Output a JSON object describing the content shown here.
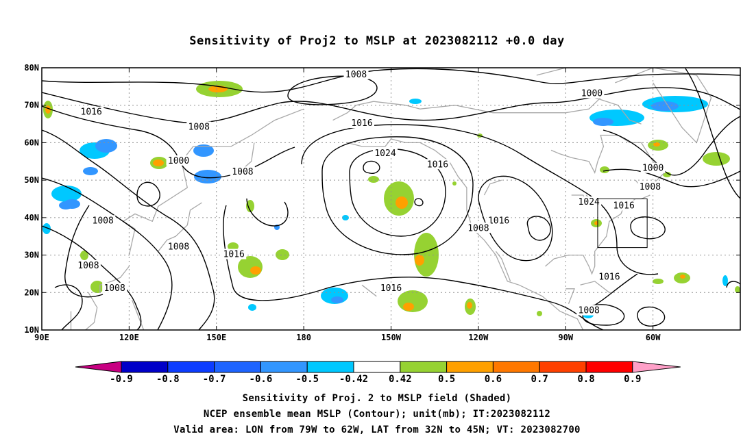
{
  "title": "Sensitivity of Proj2 to MSLP at 2023082112 +0.0 day",
  "map": {
    "lat_labels": [
      "80N",
      "70N",
      "60N",
      "50N",
      "40N",
      "30N",
      "20N",
      "10N"
    ],
    "lon_labels": [
      "90E",
      "120E",
      "150E",
      "180",
      "150W",
      "120W",
      "90W",
      "60W"
    ],
    "contour_labels": [
      {
        "value": "1008",
        "lon": -162,
        "lat": 78
      },
      {
        "value": "1000",
        "lon": -81,
        "lat": 73
      },
      {
        "value": "1016",
        "lon": 107,
        "lat": 68
      },
      {
        "value": "1008",
        "lon": 144,
        "lat": 64
      },
      {
        "value": "1016",
        "lon": -160,
        "lat": 65
      },
      {
        "value": "1000",
        "lon": 137,
        "lat": 55
      },
      {
        "value": "1024",
        "lon": -152,
        "lat": 57
      },
      {
        "value": "1016",
        "lon": -134,
        "lat": 54
      },
      {
        "value": "1000",
        "lon": -60,
        "lat": 53
      },
      {
        "value": "1008",
        "lon": 159,
        "lat": 52
      },
      {
        "value": "1008",
        "lon": -61,
        "lat": 48
      },
      {
        "value": "1024",
        "lon": -82,
        "lat": 44
      },
      {
        "value": "1016",
        "lon": -70,
        "lat": 43
      },
      {
        "value": "1008",
        "lon": 111,
        "lat": 39
      },
      {
        "value": "1016",
        "lon": -113,
        "lat": 39
      },
      {
        "value": "1008",
        "lon": -120,
        "lat": 37
      },
      {
        "value": "1008",
        "lon": 137,
        "lat": 32
      },
      {
        "value": "1016",
        "lon": 156,
        "lat": 30
      },
      {
        "value": "1008",
        "lon": 106,
        "lat": 27
      },
      {
        "value": "1016",
        "lon": -75,
        "lat": 24
      },
      {
        "value": "1008",
        "lon": 115,
        "lat": 21
      },
      {
        "value": "1016",
        "lon": -150,
        "lat": 21
      },
      {
        "value": "1008",
        "lon": -82,
        "lat": 15
      }
    ],
    "valid_box": {
      "lon_min": -79,
      "lon_max": -62,
      "lat_min": 32,
      "lat_max": 45
    },
    "colors": {
      "contour": "#000000",
      "coastline": "#a8a8a8",
      "grid": "#909090"
    }
  },
  "colorbar": {
    "labels": [
      "-0.9",
      "-0.8",
      "-0.7",
      "-0.6",
      "-0.5",
      "-0.42",
      "0.42",
      "0.5",
      "0.6",
      "0.7",
      "0.8",
      "0.9"
    ],
    "colors": [
      "#0000c8",
      "#0c3cff",
      "#1e64ff",
      "#3296ff",
      "#00c8ff",
      "#ffffff",
      "#96d232",
      "#ffa000",
      "#ff7800",
      "#ff4000",
      "#ff0000"
    ],
    "low_extend_color": "#c80082",
    "high_extend_color": "#ffa0c8"
  },
  "captions": {
    "line1": "Sensitivity of Proj. 2 to MSLP field (Shaded)",
    "line2": "NCEP ensemble mean MSLP (Contour); unit(mb); IT:2023082112",
    "line3": "Valid area: LON from 79W to 62W, LAT from 32N to 45N; VT: 2023082700"
  }
}
